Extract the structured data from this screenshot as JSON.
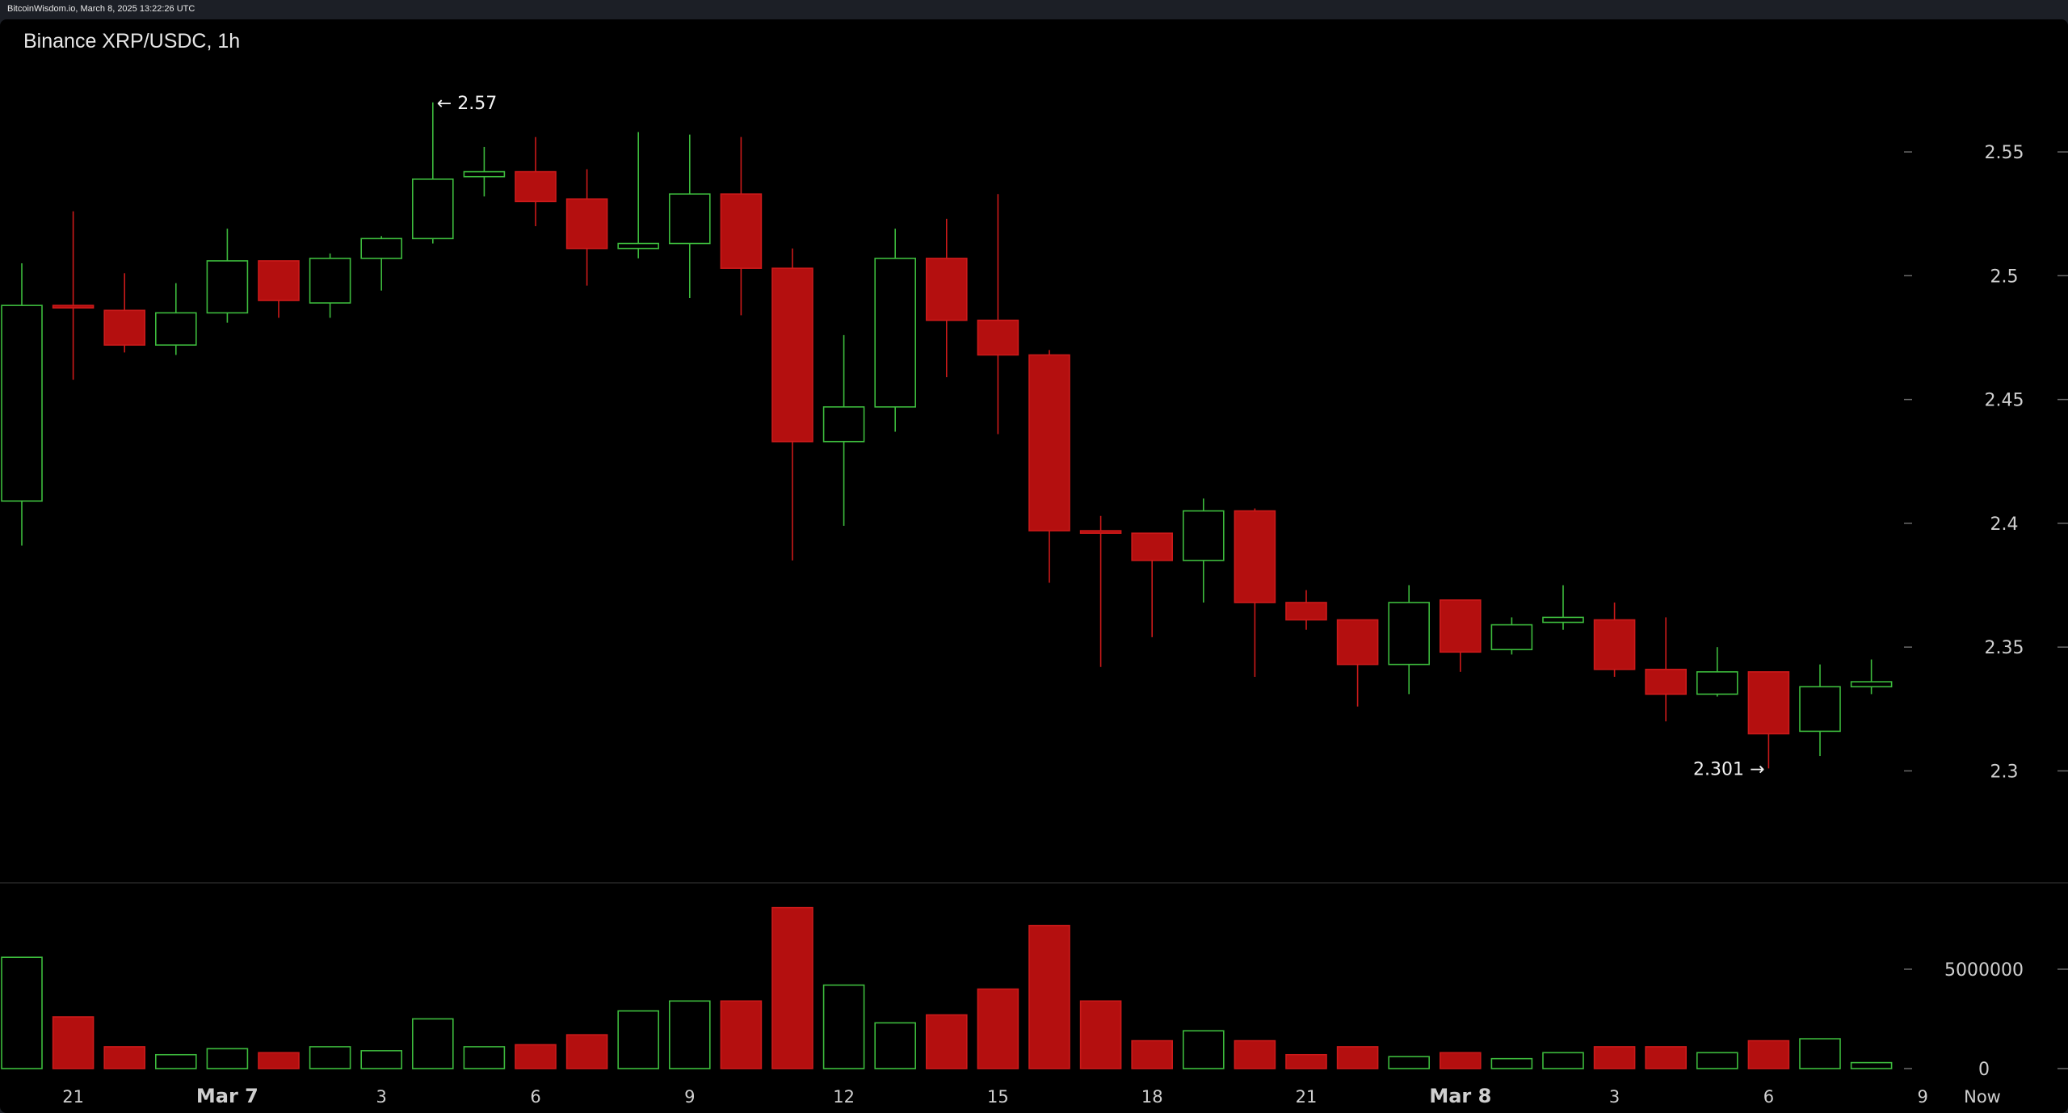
{
  "header": {
    "source_line": "BitcoinWisdom.io, March 8, 2025 13:22:26 UTC"
  },
  "colors": {
    "up": "#3dbb3d",
    "down": "#b40f0f",
    "down_edge": "#cc1a1a",
    "text": "#cfcfcf",
    "background": "#000000"
  },
  "chart_data": {
    "type": "candlestick",
    "title": "Binance XRP/USDC, 1h",
    "price_axis": {
      "ticks": [
        2.3,
        2.35,
        2.4,
        2.45,
        2.5,
        2.55
      ],
      "tick_labels": [
        "2.3",
        "2.35",
        "2.4",
        "2.45",
        "2.5",
        "2.55"
      ],
      "range": [
        2.261,
        2.597
      ]
    },
    "volume_axis": {
      "ticks": [
        0,
        5000000
      ],
      "tick_labels": [
        "0",
        "5000000"
      ],
      "range": [
        0,
        8900000
      ]
    },
    "x_labels": [
      {
        "index": 1,
        "label": "21",
        "major": false
      },
      {
        "index": 4,
        "label": "Mar 7",
        "major": true
      },
      {
        "index": 7,
        "label": "3",
        "major": false
      },
      {
        "index": 10,
        "label": "6",
        "major": false
      },
      {
        "index": 13,
        "label": "9",
        "major": false
      },
      {
        "index": 16,
        "label": "12",
        "major": false
      },
      {
        "index": 19,
        "label": "15",
        "major": false
      },
      {
        "index": 22,
        "label": "18",
        "major": false
      },
      {
        "index": 25,
        "label": "21",
        "major": false
      },
      {
        "index": 28,
        "label": "Mar 8",
        "major": true
      },
      {
        "index": 31,
        "label": "3",
        "major": false
      },
      {
        "index": 34,
        "label": "6",
        "major": false
      },
      {
        "index": 37,
        "label": "9",
        "major": false
      },
      {
        "index": 38,
        "label": "Now",
        "major": false
      }
    ],
    "annotations": [
      {
        "index": 8,
        "value": 2.57,
        "text": "← 2.57",
        "side": "right"
      },
      {
        "index": 34,
        "value": 2.301,
        "text": "2.301 →",
        "side": "left"
      }
    ],
    "candles": [
      {
        "open": 2.409,
        "high": 2.505,
        "low": 2.391,
        "close": 2.488,
        "volume": 5600000
      },
      {
        "open": 2.488,
        "high": 2.526,
        "low": 2.458,
        "close": 2.487,
        "volume": 2600000
      },
      {
        "open": 2.486,
        "high": 2.501,
        "low": 2.469,
        "close": 2.472,
        "volume": 1100000
      },
      {
        "open": 2.472,
        "high": 2.497,
        "low": 2.468,
        "close": 2.485,
        "volume": 700000
      },
      {
        "open": 2.485,
        "high": 2.519,
        "low": 2.481,
        "close": 2.506,
        "volume": 1000000
      },
      {
        "open": 2.506,
        "high": 2.506,
        "low": 2.483,
        "close": 2.49,
        "volume": 800000
      },
      {
        "open": 2.489,
        "high": 2.509,
        "low": 2.483,
        "close": 2.507,
        "volume": 1100000
      },
      {
        "open": 2.507,
        "high": 2.516,
        "low": 2.494,
        "close": 2.515,
        "volume": 900000
      },
      {
        "open": 2.515,
        "high": 2.57,
        "low": 2.513,
        "close": 2.539,
        "volume": 2500000
      },
      {
        "open": 2.54,
        "high": 2.552,
        "low": 2.532,
        "close": 2.542,
        "volume": 1100000
      },
      {
        "open": 2.542,
        "high": 2.556,
        "low": 2.52,
        "close": 2.53,
        "volume": 1200000
      },
      {
        "open": 2.531,
        "high": 2.543,
        "low": 2.496,
        "close": 2.511,
        "volume": 1700000
      },
      {
        "open": 2.511,
        "high": 2.558,
        "low": 2.507,
        "close": 2.513,
        "volume": 2900000
      },
      {
        "open": 2.513,
        "high": 2.557,
        "low": 2.491,
        "close": 2.533,
        "volume": 3400000
      },
      {
        "open": 2.533,
        "high": 2.556,
        "low": 2.484,
        "close": 2.503,
        "volume": 3400000
      },
      {
        "open": 2.503,
        "high": 2.511,
        "low": 2.385,
        "close": 2.433,
        "volume": 8100000
      },
      {
        "open": 2.433,
        "high": 2.476,
        "low": 2.399,
        "close": 2.447,
        "volume": 4200000
      },
      {
        "open": 2.447,
        "high": 2.519,
        "low": 2.437,
        "close": 2.507,
        "volume": 2300000
      },
      {
        "open": 2.507,
        "high": 2.523,
        "low": 2.459,
        "close": 2.482,
        "volume": 2700000
      },
      {
        "open": 2.482,
        "high": 2.533,
        "low": 2.436,
        "close": 2.468,
        "volume": 4000000
      },
      {
        "open": 2.468,
        "high": 2.47,
        "low": 2.376,
        "close": 2.397,
        "volume": 7200000
      },
      {
        "open": 2.397,
        "high": 2.403,
        "low": 2.342,
        "close": 2.396,
        "volume": 3400000
      },
      {
        "open": 2.396,
        "high": 2.396,
        "low": 2.354,
        "close": 2.385,
        "volume": 1400000
      },
      {
        "open": 2.385,
        "high": 2.41,
        "low": 2.368,
        "close": 2.405,
        "volume": 1900000
      },
      {
        "open": 2.405,
        "high": 2.406,
        "low": 2.338,
        "close": 2.368,
        "volume": 1400000
      },
      {
        "open": 2.368,
        "high": 2.373,
        "low": 2.357,
        "close": 2.361,
        "volume": 700000
      },
      {
        "open": 2.361,
        "high": 2.361,
        "low": 2.326,
        "close": 2.343,
        "volume": 1100000
      },
      {
        "open": 2.343,
        "high": 2.375,
        "low": 2.331,
        "close": 2.368,
        "volume": 600000
      },
      {
        "open": 2.369,
        "high": 2.369,
        "low": 2.34,
        "close": 2.348,
        "volume": 800000
      },
      {
        "open": 2.349,
        "high": 2.362,
        "low": 2.347,
        "close": 2.359,
        "volume": 500000
      },
      {
        "open": 2.36,
        "high": 2.375,
        "low": 2.357,
        "close": 2.362,
        "volume": 800000
      },
      {
        "open": 2.361,
        "high": 2.368,
        "low": 2.338,
        "close": 2.341,
        "volume": 1100000
      },
      {
        "open": 2.341,
        "high": 2.362,
        "low": 2.32,
        "close": 2.331,
        "volume": 1100000
      },
      {
        "open": 2.331,
        "high": 2.35,
        "low": 2.33,
        "close": 2.34,
        "volume": 800000
      },
      {
        "open": 2.34,
        "high": 2.34,
        "low": 2.301,
        "close": 2.315,
        "volume": 1400000
      },
      {
        "open": 2.316,
        "high": 2.343,
        "low": 2.306,
        "close": 2.334,
        "volume": 1500000
      },
      {
        "open": 2.334,
        "high": 2.345,
        "low": 2.331,
        "close": 2.336,
        "volume": 300000
      }
    ]
  }
}
